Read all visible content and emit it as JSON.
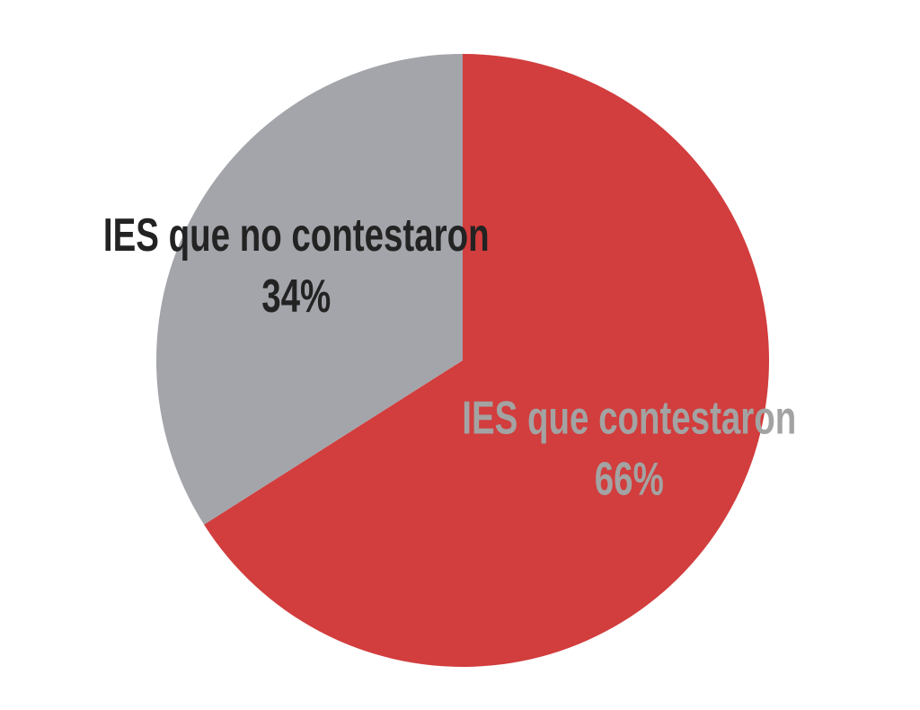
{
  "chart_data": {
    "type": "pie",
    "categories": [
      "IES que contestaron",
      "IES que no contestaron"
    ],
    "values": [
      66,
      34
    ],
    "value_labels": [
      "66%",
      "34%"
    ],
    "colors": [
      "#d23d3d",
      "#a3a5aa"
    ],
    "label_colors": [
      "#a3a3a3",
      "#232323"
    ]
  }
}
